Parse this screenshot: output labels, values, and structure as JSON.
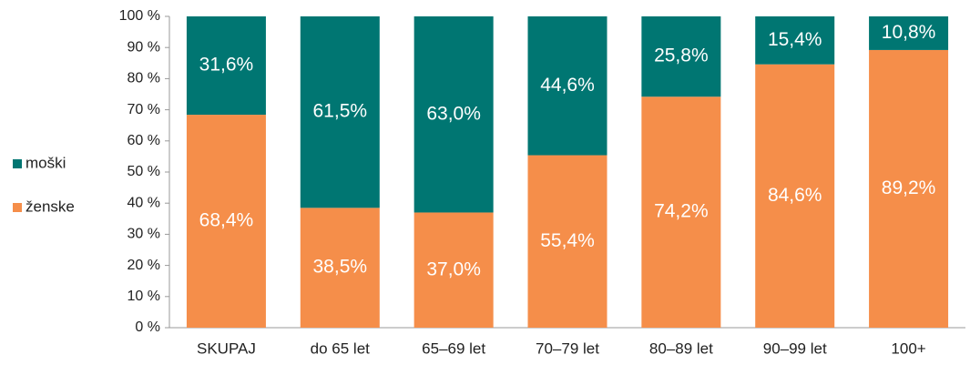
{
  "chart_data": {
    "type": "stacked_bar_100",
    "categories": [
      "SKUPAJ",
      "do 65 let",
      "65–69 let",
      "70–79 let",
      "80–89 let",
      "90–99 let",
      "100+"
    ],
    "series": [
      {
        "name": "ženske",
        "color": "#f58e4a",
        "values": [
          68.4,
          38.5,
          37.0,
          55.4,
          74.2,
          84.6,
          89.2
        ],
        "value_labels": [
          "68,4%",
          "38,5%",
          "37,0%",
          "55,4%",
          "74,2%",
          "84,6%",
          "89,2%"
        ]
      },
      {
        "name": "moški",
        "color": "#007672",
        "values": [
          31.6,
          61.5,
          63.0,
          44.6,
          25.8,
          15.4,
          10.8
        ],
        "value_labels": [
          "31,6%",
          "61,5%",
          "63,0%",
          "44,6%",
          "25,8%",
          "15,4%",
          "10,8%"
        ]
      }
    ],
    "ylim": [
      0,
      100
    ],
    "yticks": [
      {
        "value": 0,
        "label": "0 %"
      },
      {
        "value": 10,
        "label": "10 %"
      },
      {
        "value": 20,
        "label": "20 %"
      },
      {
        "value": 30,
        "label": "30 %"
      },
      {
        "value": 40,
        "label": "40 %"
      },
      {
        "value": 50,
        "label": "50 %"
      },
      {
        "value": 60,
        "label": "60 %"
      },
      {
        "value": 70,
        "label": "70 %"
      },
      {
        "value": 80,
        "label": "80 %"
      },
      {
        "value": 90,
        "label": "90 %"
      },
      {
        "value": 100,
        "label": "100 %"
      }
    ],
    "legend": "left"
  }
}
